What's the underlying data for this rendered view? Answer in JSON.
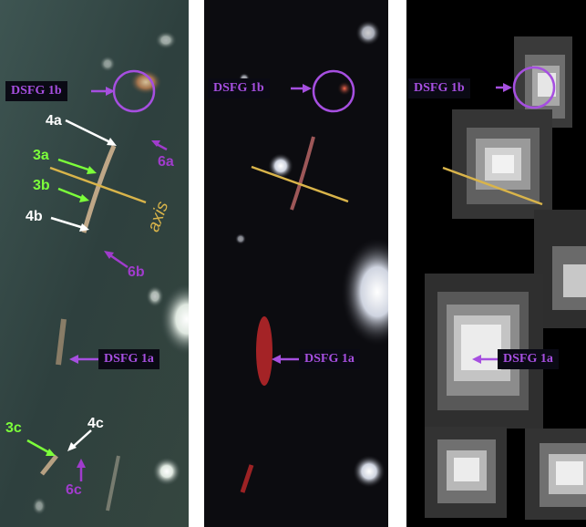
{
  "panels": [
    {
      "id": "hst-color",
      "labels": {
        "dsfg_1b": "DSFG 1b",
        "dsfg_1a": "DSFG 1a",
        "img_4a": "4a",
        "img_3a": "3a",
        "img_3b": "3b",
        "img_4b": "4b",
        "img_6a": "6a",
        "img_6b": "6b",
        "img_3c": "3c",
        "img_4c": "4c",
        "img_6c": "6c",
        "axis": "axis"
      }
    },
    {
      "id": "jwst-color",
      "labels": {
        "dsfg_1b": "DSFG 1b",
        "dsfg_1a": "DSFG 1a"
      }
    },
    {
      "id": "submm-pixelated",
      "labels": {
        "dsfg_1b": "DSFG 1b",
        "dsfg_1a": "DSFG 1a"
      }
    }
  ],
  "colors": {
    "dsfg_purple": "#a64fe0",
    "white_label": "#ffffff",
    "green_label": "#7cff3a",
    "magenta_label": "#a03ccc",
    "axis_gold": "#d9b44a"
  }
}
